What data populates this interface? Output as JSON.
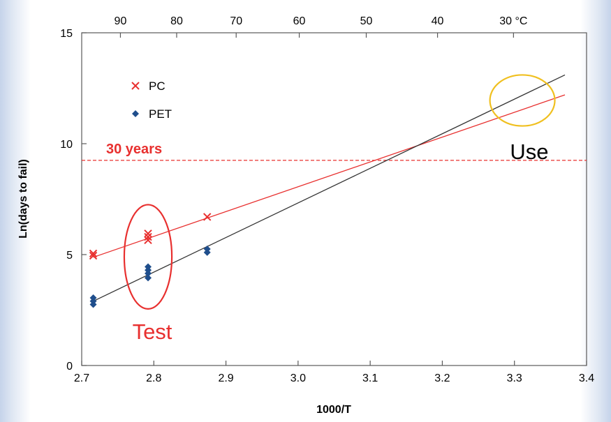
{
  "chart_data": {
    "type": "scatter",
    "xlabel": "1000/T",
    "ylabel": "Ln(days to fail)",
    "xlim": [
      2.7,
      3.4
    ],
    "ylim": [
      0,
      15
    ],
    "x_ticks": [
      "2.7",
      "2.8",
      "2.9",
      "3.0",
      "3.1",
      "3.2",
      "3.3",
      "3.4"
    ],
    "y_ticks": [
      "0",
      "5",
      "10",
      "15"
    ],
    "top_axis": {
      "unit": "°C",
      "ticks": [
        {
          "celsius": 90,
          "label": "90"
        },
        {
          "celsius": 80,
          "label": "80"
        },
        {
          "celsius": 70,
          "label": "70"
        },
        {
          "celsius": 60,
          "label": "60"
        },
        {
          "celsius": 50,
          "label": "50"
        },
        {
          "celsius": 40,
          "label": "40"
        },
        {
          "celsius": 30,
          "label": "30 °C"
        }
      ]
    },
    "grid": false,
    "legend_position": "top-left",
    "series": [
      {
        "name": "PC",
        "marker": "x",
        "color": "#e8302f",
        "points": [
          {
            "x": 2.716,
            "y": 4.95
          },
          {
            "x": 2.716,
            "y": 5.05
          },
          {
            "x": 2.792,
            "y": 5.65
          },
          {
            "x": 2.792,
            "y": 5.8
          },
          {
            "x": 2.792,
            "y": 5.95
          },
          {
            "x": 2.874,
            "y": 6.7
          }
        ],
        "fit_line": {
          "x": [
            2.716,
            3.37
          ],
          "y": [
            4.88,
            12.2
          ]
        }
      },
      {
        "name": "PET",
        "marker": "diamond",
        "color": "#1f4e8c",
        "points": [
          {
            "x": 2.716,
            "y": 2.75
          },
          {
            "x": 2.716,
            "y": 2.9
          },
          {
            "x": 2.716,
            "y": 3.05
          },
          {
            "x": 2.792,
            "y": 3.95
          },
          {
            "x": 2.792,
            "y": 4.15
          },
          {
            "x": 2.792,
            "y": 4.3
          },
          {
            "x": 2.792,
            "y": 4.45
          },
          {
            "x": 2.874,
            "y": 5.1
          },
          {
            "x": 2.874,
            "y": 5.25
          }
        ],
        "fit_line": {
          "x": [
            2.716,
            3.37
          ],
          "y": [
            2.9,
            13.1
          ]
        }
      }
    ],
    "reference_line": {
      "y": 9.25,
      "label": "30 years",
      "color": "#e8302f",
      "style": "dashed"
    },
    "annotations": [
      {
        "text": "Test",
        "color": "#e8302f",
        "ellipse_color": "#e8302f",
        "ellipse_center": {
          "x": 2.792,
          "y": 4.9
        },
        "ellipse_radii": {
          "x": 0.033,
          "y": 2.35
        }
      },
      {
        "text": "Use",
        "color": "#000000",
        "ellipse_color": "#f0c020",
        "ellipse_center": {
          "x": 3.311,
          "y": 11.95
        },
        "ellipse_radii": {
          "x": 0.045,
          "y": 1.15
        }
      }
    ]
  }
}
